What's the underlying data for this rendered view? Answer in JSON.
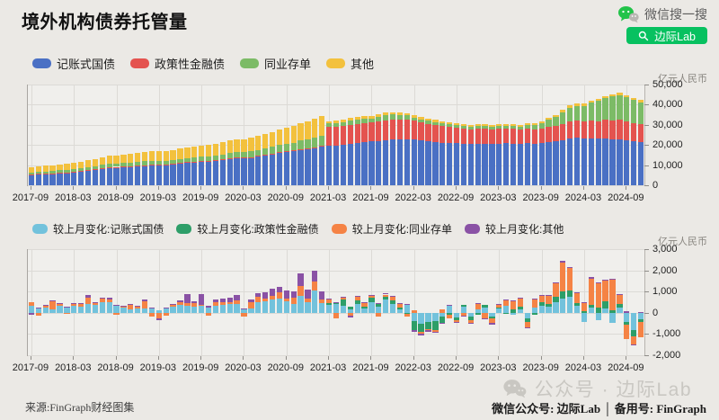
{
  "header": {
    "title": "境外机构债券托管量",
    "wechat_search_label": "微信搜一搜",
    "search_button_label": "边际Lab"
  },
  "colors": {
    "wechat_green": "#07C160",
    "watermark_gray": "#c9c7c2"
  },
  "footer": {
    "source": "来源:FinGraph财经图集",
    "watermark": "公众号 · 边际Lab",
    "account": {
      "label1": "微信公众号: ",
      "value1": "边际Lab",
      "separator": " │ ",
      "label2": "备用号: ",
      "value2": "FinGraph"
    }
  },
  "chart_data": [
    {
      "id": "custody-total",
      "type": "bar",
      "stacked": true,
      "unit": "亿元人民币",
      "ylim": [
        0,
        50000
      ],
      "yticks": [
        0,
        10000,
        20000,
        30000,
        40000,
        50000
      ],
      "xtick_every": 6,
      "xticks": [
        "2017-09",
        "2018-03",
        "2018-09",
        "2019-03",
        "2019-09",
        "2020-03",
        "2020-09",
        "2021-03",
        "2021-09",
        "2022-03",
        "2022-09",
        "2023-03",
        "2023-09",
        "2024-03",
        "2024-09"
      ],
      "x": [
        "2017-09",
        "2017-10",
        "2017-11",
        "2017-12",
        "2018-01",
        "2018-02",
        "2018-03",
        "2018-04",
        "2018-05",
        "2018-06",
        "2018-07",
        "2018-08",
        "2018-09",
        "2018-10",
        "2018-11",
        "2018-12",
        "2019-01",
        "2019-02",
        "2019-03",
        "2019-04",
        "2019-05",
        "2019-06",
        "2019-07",
        "2019-08",
        "2019-09",
        "2019-10",
        "2019-11",
        "2019-12",
        "2020-01",
        "2020-02",
        "2020-03",
        "2020-04",
        "2020-05",
        "2020-06",
        "2020-07",
        "2020-08",
        "2020-09",
        "2020-10",
        "2020-11",
        "2020-12",
        "2021-01",
        "2021-02",
        "2021-03",
        "2021-04",
        "2021-05",
        "2021-06",
        "2021-07",
        "2021-08",
        "2021-09",
        "2021-10",
        "2021-11",
        "2021-12",
        "2022-01",
        "2022-02",
        "2022-03",
        "2022-04",
        "2022-05",
        "2022-06",
        "2022-07",
        "2022-08",
        "2022-09",
        "2022-10",
        "2022-11",
        "2022-12",
        "2023-01",
        "2023-02",
        "2023-03",
        "2023-04",
        "2023-05",
        "2023-06",
        "2023-07",
        "2023-08",
        "2023-09",
        "2023-10",
        "2023-11",
        "2023-12",
        "2024-01",
        "2024-02",
        "2024-03",
        "2024-04",
        "2024-05",
        "2024-06",
        "2024-07",
        "2024-08",
        "2024-09",
        "2024-10",
        "2024-11"
      ],
      "series": [
        {
          "key": "cgb",
          "name": "记账式国债",
          "color": "#4a70c4",
          "values": [
            5300,
            5500,
            5700,
            5800,
            6100,
            6300,
            6600,
            6900,
            7300,
            7700,
            8200,
            8700,
            9000,
            9200,
            9300,
            9500,
            9700,
            9900,
            10000,
            10200,
            10500,
            10900,
            11200,
            11500,
            11800,
            12000,
            12300,
            12700,
            13100,
            13500,
            13600,
            13800,
            14300,
            14800,
            15400,
            16100,
            16600,
            17000,
            17600,
            18100,
            18700,
            19200,
            19500,
            19800,
            20200,
            20700,
            21100,
            21400,
            21700,
            22000,
            22400,
            22600,
            22800,
            22900,
            22600,
            22200,
            21800,
            21500,
            21200,
            21000,
            20800,
            20600,
            20500,
            20500,
            20700,
            20500,
            20700,
            20850,
            20750,
            20650,
            20800,
            20650,
            20970,
            21250,
            21770,
            22450,
            23200,
            23500,
            23100,
            23300,
            23000,
            23200,
            22700,
            22900,
            22500,
            21700,
            21400
          ]
        },
        {
          "key": "policy",
          "name": "政策性金融债",
          "color": "#e4534f",
          "values": [
            150,
            150,
            150,
            150,
            150,
            150,
            150,
            150,
            150,
            150,
            150,
            150,
            150,
            150,
            150,
            150,
            200,
            200,
            200,
            200,
            200,
            200,
            200,
            200,
            200,
            200,
            200,
            200,
            250,
            250,
            250,
            250,
            250,
            250,
            250,
            250,
            250,
            250,
            250,
            250,
            250,
            250,
            9300,
            9000,
            9100,
            9250,
            9400,
            9500,
            9400,
            9600,
            9800,
            9900,
            9950,
            9800,
            9450,
            9050,
            8650,
            8350,
            8050,
            7850,
            7650,
            7450,
            7350,
            7450,
            7350,
            7250,
            7300,
            7250,
            7200,
            7100,
            7200,
            7150,
            7330,
            7570,
            7730,
            8070,
            8350,
            8470,
            8530,
            8690,
            8910,
            9250,
            9370,
            9530,
            9410,
            9130,
            8990
          ]
        },
        {
          "key": "ncd",
          "name": "同业存单",
          "color": "#7cbb66",
          "values": [
            1000,
            1050,
            950,
            1100,
            1150,
            1100,
            1200,
            1300,
            1500,
            1550,
            1700,
            1800,
            1700,
            1750,
            1900,
            2000,
            2250,
            2100,
            1900,
            1750,
            1800,
            1950,
            2050,
            2200,
            2250,
            2150,
            2300,
            2400,
            2500,
            2650,
            2500,
            2800,
            3050,
            3150,
            3350,
            3600,
            3700,
            3950,
            4400,
            4550,
            4900,
            5100,
            1800,
            1950,
            2050,
            2200,
            2100,
            2250,
            2150,
            2300,
            2450,
            2550,
            2000,
            1900,
            1650,
            1500,
            1550,
            1600,
            1500,
            1450,
            1400,
            1350,
            1300,
            1450,
            1300,
            1200,
            1350,
            1500,
            1600,
            1450,
            1700,
            1900,
            2500,
            3650,
            4450,
            5800,
            7000,
            7400,
            7800,
            8900,
            9900,
            10800,
            12000,
            12400,
            11800,
            11400,
            10800
          ]
        },
        {
          "key": "other",
          "name": "其他",
          "color": "#f3c13d",
          "values": [
            2600,
            2700,
            2800,
            2900,
            3000,
            3100,
            3200,
            3300,
            3400,
            3500,
            3700,
            3900,
            4000,
            4100,
            4200,
            4300,
            4500,
            4600,
            4700,
            4800,
            5000,
            5200,
            5300,
            5500,
            5600,
            5700,
            5900,
            6100,
            6300,
            6500,
            6400,
            6600,
            6900,
            7100,
            7400,
            7700,
            7900,
            8200,
            8700,
            9000,
            9400,
            9700,
            1300,
            1250,
            1300,
            1350,
            1300,
            1250,
            1200,
            1250,
            1300,
            1250,
            1300,
            1250,
            1200,
            1150,
            1100,
            1050,
            1000,
            1000,
            950,
            950,
            900,
            950,
            900,
            880,
            900,
            920,
            900,
            880,
            900,
            890,
            920,
            950,
            980,
            1020,
            1050,
            1080,
            1060,
            1080,
            1100,
            1120,
            1150,
            1180,
            1130,
            1050,
            1000
          ]
        }
      ]
    },
    {
      "id": "monthly-change",
      "type": "bar",
      "stacked": true,
      "diverging": true,
      "unit": "亿元人民币",
      "ylim": [
        -2000,
        3000
      ],
      "yticks": [
        -2000,
        -1000,
        0,
        1000,
        2000,
        3000
      ],
      "xtick_every": 6,
      "xticks": [
        "2017-09",
        "2018-03",
        "2018-09",
        "2019-03",
        "2019-09",
        "2020-03",
        "2020-09",
        "2021-03",
        "2021-09",
        "2022-03",
        "2022-09",
        "2023-03",
        "2023-09",
        "2024-03",
        "2024-09"
      ],
      "x": [
        "2017-09",
        "2017-10",
        "2017-11",
        "2017-12",
        "2018-01",
        "2018-02",
        "2018-03",
        "2018-04",
        "2018-05",
        "2018-06",
        "2018-07",
        "2018-08",
        "2018-09",
        "2018-10",
        "2018-11",
        "2018-12",
        "2019-01",
        "2019-02",
        "2019-03",
        "2019-04",
        "2019-05",
        "2019-06",
        "2019-07",
        "2019-08",
        "2019-09",
        "2019-10",
        "2019-11",
        "2019-12",
        "2020-01",
        "2020-02",
        "2020-03",
        "2020-04",
        "2020-05",
        "2020-06",
        "2020-07",
        "2020-08",
        "2020-09",
        "2020-10",
        "2020-11",
        "2020-12",
        "2021-01",
        "2021-02",
        "2021-03",
        "2021-04",
        "2021-05",
        "2021-06",
        "2021-07",
        "2021-08",
        "2021-09",
        "2021-10",
        "2021-11",
        "2021-12",
        "2022-01",
        "2022-02",
        "2022-03",
        "2022-04",
        "2022-05",
        "2022-06",
        "2022-07",
        "2022-08",
        "2022-09",
        "2022-10",
        "2022-11",
        "2022-12",
        "2023-01",
        "2023-02",
        "2023-03",
        "2023-04",
        "2023-05",
        "2023-06",
        "2023-07",
        "2023-08",
        "2023-09",
        "2023-10",
        "2023-11",
        "2023-12",
        "2024-01",
        "2024-02",
        "2024-03",
        "2024-04",
        "2024-05",
        "2024-06",
        "2024-07",
        "2024-08",
        "2024-09",
        "2024-10",
        "2024-11"
      ],
      "series": [
        {
          "key": "chg-cgb",
          "name": "较上月变化:记账式国债",
          "color": "#72c2dc",
          "values": [
            350,
            210,
            240,
            140,
            320,
            240,
            310,
            300,
            430,
            390,
            490,
            520,
            310,
            230,
            150,
            200,
            220,
            200,
            130,
            190,
            290,
            370,
            350,
            290,
            310,
            240,
            330,
            390,
            400,
            430,
            150,
            220,
            490,
            540,
            610,
            690,
            530,
            430,
            780,
            490,
            1050,
            450,
            380,
            420,
            350,
            160,
            420,
            200,
            520,
            280,
            640,
            420,
            160,
            380,
            -380,
            -520,
            -420,
            -380,
            -180,
            320,
            -240,
            280,
            -190,
            160,
            240,
            -160,
            190,
            320,
            -90,
            180,
            -280,
            240,
            320,
            280,
            520,
            680,
            760,
            340,
            -430,
            230,
            -360,
            190,
            -480,
            240,
            -430,
            -830,
            -290
          ]
        },
        {
          "key": "chg-policy",
          "name": "较上月变化:政策性金融债",
          "color": "#2d9e68",
          "values": [
            0,
            0,
            0,
            0,
            0,
            0,
            0,
            0,
            0,
            0,
            0,
            0,
            0,
            0,
            0,
            0,
            0,
            0,
            0,
            0,
            0,
            0,
            0,
            0,
            0,
            0,
            0,
            0,
            0,
            0,
            0,
            0,
            0,
            0,
            0,
            0,
            0,
            0,
            0,
            0,
            0,
            0,
            90,
            60,
            280,
            120,
            150,
            90,
            180,
            120,
            130,
            160,
            90,
            -60,
            -420,
            -380,
            -340,
            -420,
            -280,
            -90,
            -120,
            90,
            -140,
            -90,
            120,
            -90,
            60,
            -60,
            160,
            90,
            -160,
            -90,
            180,
            120,
            230,
            310,
            290,
            130,
            60,
            160,
            230,
            340,
            120,
            160,
            -120,
            -280,
            -140
          ]
        },
        {
          "key": "chg-ncd",
          "name": "较上月变化:同业存单",
          "color": "#f58345",
          "values": [
            160,
            -130,
            90,
            390,
            90,
            -70,
            90,
            110,
            290,
            70,
            180,
            90,
            -100,
            70,
            210,
            100,
            330,
            -170,
            -270,
            -150,
            70,
            140,
            100,
            150,
            70,
            -130,
            160,
            130,
            120,
            170,
            -190,
            290,
            270,
            130,
            190,
            290,
            130,
            270,
            490,
            170,
            420,
            180,
            160,
            -260,
            90,
            -140,
            180,
            160,
            90,
            -160,
            90,
            180,
            160,
            -120,
            120,
            -90,
            -60,
            -90,
            160,
            -160,
            -90,
            -130,
            -160,
            280,
            -280,
            -240,
            130,
            270,
            380,
            420,
            -240,
            380,
            280,
            380,
            640,
            1390,
            1060,
            470,
            390,
            1230,
            1150,
            980,
            1430,
            430,
            -680,
            -370,
            -730
          ]
        },
        {
          "key": "chg-other",
          "name": "较上月变化:其他",
          "color": "#8a52a5",
          "values": [
            -90,
            50,
            60,
            70,
            50,
            40,
            70,
            60,
            120,
            50,
            60,
            100,
            60,
            40,
            50,
            40,
            60,
            40,
            -60,
            50,
            50,
            80,
            430,
            90,
            490,
            70,
            130,
            160,
            180,
            230,
            60,
            130,
            160,
            290,
            340,
            260,
            390,
            310,
            570,
            430,
            520,
            380,
            60,
            40,
            50,
            -60,
            50,
            40,
            50,
            40,
            50,
            40,
            40,
            40,
            -80,
            -60,
            -70,
            -50,
            -60,
            40,
            -40,
            -30,
            -40,
            30,
            -40,
            -50,
            30,
            40,
            30,
            40,
            -40,
            30,
            40,
            50,
            60,
            60,
            50,
            40,
            40,
            50,
            40,
            50,
            40,
            40,
            60,
            -60,
            40
          ]
        }
      ]
    }
  ]
}
